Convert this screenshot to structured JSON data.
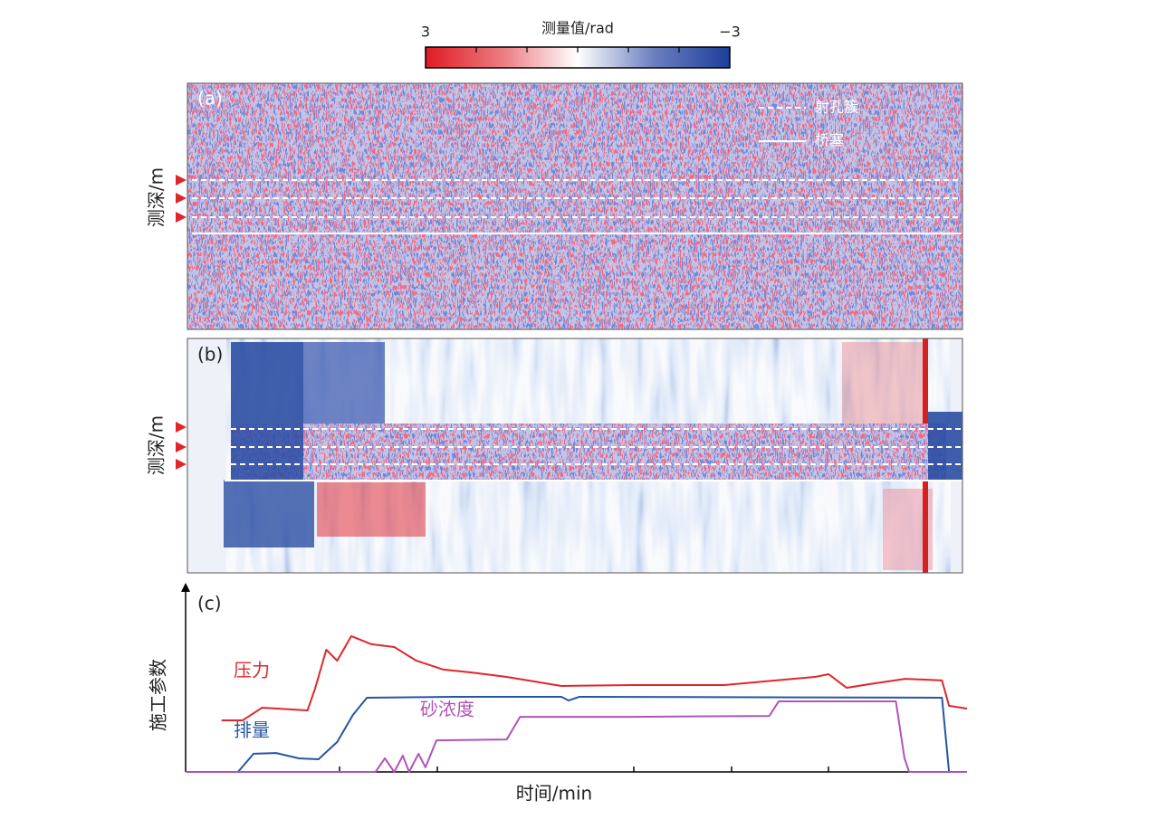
{
  "chart_data": [
    {
      "type": "colorbar",
      "title": "测量值/rad",
      "xlim": [
        3,
        -3
      ],
      "xticks": [
        3,
        {
          "value": -3,
          "label": "−3"
        }
      ]
    },
    {
      "type": "heatmap",
      "panel_label": "(a)",
      "ylabel": "测深/m",
      "legend": [
        "射孔簇",
        "桥塞"
      ]
    },
    {
      "type": "heatmap",
      "panel_label": "(b)",
      "ylabel": "测深/m"
    },
    {
      "type": "line",
      "panel_label": "(c)",
      "ylabel": "施工参数",
      "xlabel": "时间/min",
      "xlim": [
        0,
        100
      ],
      "ylim": [
        0,
        100
      ],
      "series": [
        {
          "name": "压力",
          "color": "#e0262a",
          "x": [
            4.6,
            7.3,
            9.8,
            15.6,
            16.6,
            18.0,
            19.4,
            21.2,
            23.8,
            26.7,
            29.5,
            33.0,
            36.5,
            41.1,
            48.1,
            57.4,
            68.9,
            80.5,
            82.3,
            84.6,
            87.5,
            92.1,
            96.8,
            97.7,
            100
          ],
          "values": [
            28.1,
            28.1,
            35.0,
            33.5,
            45.8,
            66.5,
            60.6,
            73.9,
            69.5,
            68.0,
            60.6,
            55.7,
            54.2,
            51.7,
            46.8,
            47.3,
            47.3,
            51.7,
            53.2,
            45.8,
            47.8,
            50.7,
            49.8,
            36.0,
            34.5
          ]
        },
        {
          "name": "排量",
          "color": "#2556a4",
          "x": [
            0,
            6.7,
            8.7,
            11.6,
            14.5,
            17.0,
            19.4,
            21.4,
            23.2,
            34.2,
            48.1,
            49.0,
            50.4,
            96.8,
            97.7,
            100
          ],
          "values": [
            0,
            0,
            9.9,
            10.3,
            7.4,
            6.9,
            16.3,
            31.0,
            40.4,
            40.9,
            40.9,
            38.9,
            40.9,
            40.4,
            0,
            0
          ]
        },
        {
          "name": "砂浓度",
          "color": "#b054b8",
          "x": [
            0,
            24.3,
            25.5,
            26.7,
            27.8,
            28.6,
            29.8,
            30.7,
            32.1,
            41.1,
            42.8,
            57.4,
            74.7,
            75.9,
            90.9,
            92.0,
            92.6,
            100
          ],
          "values": [
            0,
            0,
            7.4,
            0,
            8.9,
            0,
            9.9,
            2.5,
            17.2,
            17.7,
            30.0,
            30.0,
            30.5,
            38.4,
            38.4,
            7.4,
            0,
            0
          ]
        }
      ]
    }
  ]
}
